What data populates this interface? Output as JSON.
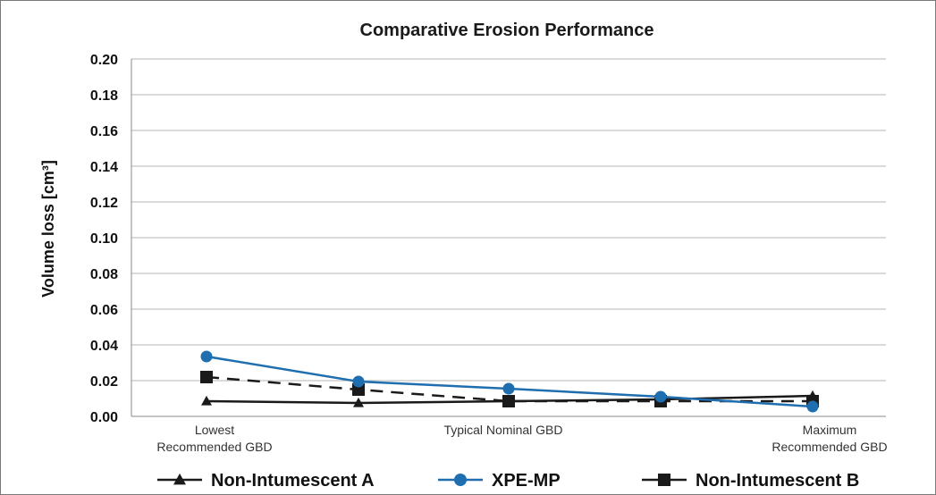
{
  "chart_data": {
    "type": "line",
    "title": "Comparative Erosion Performance",
    "ylabel": "Volume loss [cm³]",
    "ylim": [
      0,
      0.2
    ],
    "yticks": [
      "0.00",
      "0.02",
      "0.04",
      "0.06",
      "0.08",
      "0.10",
      "0.12",
      "0.14",
      "0.16",
      "0.18",
      "0.20"
    ],
    "x_tick_labels": [
      {
        "lines": [
          "Lowest",
          "Recommended GBD"
        ],
        "align": "start"
      },
      {
        "lines": [
          "Typical Nominal GBD"
        ],
        "align": "center"
      },
      {
        "lines": [
          "Maximum",
          "Recommended GBD"
        ],
        "align": "end"
      }
    ],
    "grid": true,
    "legend_position": "bottom",
    "series": [
      {
        "name": "Non-Intumescent A",
        "color": "#1a1a1a",
        "marker": "triangle",
        "dash": "solid",
        "values": [
          0.0085,
          0.0075,
          0.0085,
          0.0095,
          0.0115
        ]
      },
      {
        "name": "XPE-MP",
        "color": "#1f6eb0",
        "marker": "circle",
        "dash": "solid",
        "values": [
          0.0335,
          0.0195,
          0.0155,
          0.011,
          0.0055
        ]
      },
      {
        "name": "Non-Intumescent B",
        "color": "#1a1a1a",
        "marker": "square",
        "dash": "dashed",
        "values": [
          0.022,
          0.015,
          0.0085,
          0.0085,
          0.0085
        ]
      }
    ]
  }
}
